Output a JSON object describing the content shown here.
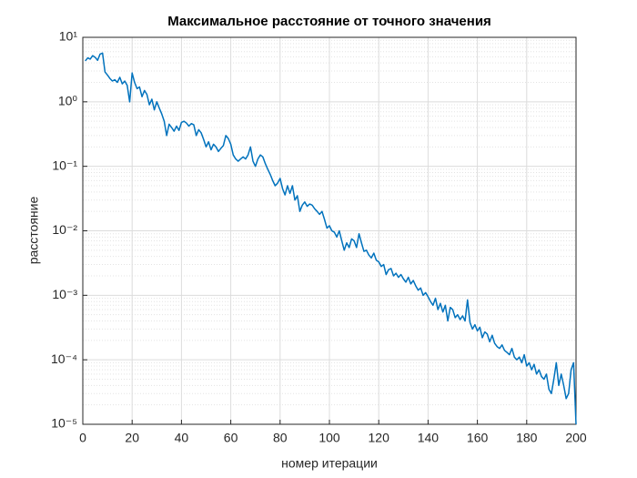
{
  "chart_data": {
    "type": "line",
    "title": "Максимальное расстояние от точного значения",
    "x_label": "номер итерации",
    "y_label": "расстояние",
    "x": [
      1,
      2,
      3,
      4,
      5,
      6,
      7,
      8,
      9,
      10,
      11,
      12,
      13,
      14,
      15,
      16,
      17,
      18,
      19,
      20,
      21,
      22,
      23,
      24,
      25,
      26,
      27,
      28,
      29,
      30,
      31,
      32,
      33,
      34,
      35,
      36,
      37,
      38,
      39,
      40,
      41,
      42,
      43,
      44,
      45,
      46,
      47,
      48,
      49,
      50,
      51,
      52,
      53,
      54,
      55,
      56,
      57,
      58,
      59,
      60,
      61,
      62,
      63,
      64,
      65,
      66,
      67,
      68,
      69,
      70,
      71,
      72,
      73,
      74,
      75,
      76,
      77,
      78,
      79,
      80,
      81,
      82,
      83,
      84,
      85,
      86,
      87,
      88,
      89,
      90,
      91,
      92,
      93,
      94,
      95,
      96,
      97,
      98,
      99,
      100,
      101,
      102,
      103,
      104,
      105,
      106,
      107,
      108,
      109,
      110,
      111,
      112,
      113,
      114,
      115,
      116,
      117,
      118,
      119,
      120,
      121,
      122,
      123,
      124,
      125,
      126,
      127,
      128,
      129,
      130,
      131,
      132,
      133,
      134,
      135,
      136,
      137,
      138,
      139,
      140,
      141,
      142,
      143,
      144,
      145,
      146,
      147,
      148,
      149,
      150,
      151,
      152,
      153,
      154,
      155,
      156,
      157,
      158,
      159,
      160,
      161,
      162,
      163,
      164,
      165,
      166,
      167,
      168,
      169,
      170,
      171,
      172,
      173,
      174,
      175,
      176,
      177,
      178,
      179,
      180,
      181,
      182,
      183,
      184,
      185,
      186,
      187,
      188,
      189,
      190,
      191,
      192,
      193,
      194,
      195,
      196,
      197,
      198,
      199,
      200
    ],
    "series": [
      {
        "name": "distance",
        "color": "#0072bd",
        "values": [
          4.3,
          4.8,
          4.6,
          5.2,
          4.9,
          4.4,
          5.5,
          5.7,
          2.9,
          2.6,
          2.3,
          2.1,
          2.2,
          2.0,
          2.4,
          1.9,
          2.1,
          1.8,
          1.0,
          2.8,
          2.0,
          1.6,
          1.7,
          1.2,
          1.5,
          1.3,
          0.9,
          1.1,
          0.75,
          1.0,
          0.8,
          0.65,
          0.5,
          0.3,
          0.45,
          0.4,
          0.35,
          0.42,
          0.36,
          0.48,
          0.5,
          0.47,
          0.42,
          0.46,
          0.44,
          0.3,
          0.37,
          0.33,
          0.26,
          0.2,
          0.24,
          0.18,
          0.22,
          0.2,
          0.17,
          0.19,
          0.21,
          0.3,
          0.27,
          0.22,
          0.15,
          0.13,
          0.12,
          0.13,
          0.14,
          0.13,
          0.15,
          0.2,
          0.12,
          0.1,
          0.13,
          0.15,
          0.14,
          0.11,
          0.09,
          0.075,
          0.06,
          0.05,
          0.055,
          0.065,
          0.045,
          0.036,
          0.05,
          0.038,
          0.05,
          0.03,
          0.035,
          0.02,
          0.025,
          0.028,
          0.024,
          0.026,
          0.025,
          0.022,
          0.02,
          0.018,
          0.02,
          0.015,
          0.011,
          0.012,
          0.01,
          0.0095,
          0.008,
          0.01,
          0.007,
          0.005,
          0.0065,
          0.0055,
          0.0075,
          0.007,
          0.0055,
          0.009,
          0.0065,
          0.0048,
          0.005,
          0.0042,
          0.0038,
          0.0045,
          0.0035,
          0.0033,
          0.0028,
          0.003,
          0.0021,
          0.0025,
          0.0026,
          0.002,
          0.0022,
          0.0019,
          0.0021,
          0.0018,
          0.0016,
          0.0019,
          0.0015,
          0.0017,
          0.0014,
          0.0012,
          0.0013,
          0.001,
          0.0011,
          0.00095,
          0.0008,
          0.0007,
          0.0009,
          0.0006,
          0.00075,
          0.00055,
          0.0007,
          0.0004,
          0.00065,
          0.0006,
          0.00045,
          0.0005,
          0.00042,
          0.00048,
          0.0004,
          0.00085,
          0.00038,
          0.0003,
          0.00035,
          0.00028,
          0.00032,
          0.00022,
          0.00027,
          0.00025,
          0.00019,
          0.00024,
          0.00018,
          0.00016,
          0.00015,
          0.00017,
          0.00014,
          0.00013,
          0.00012,
          0.00015,
          0.00011,
          0.0001,
          0.00011,
          9e-05,
          0.00012,
          8e-05,
          9e-05,
          7e-05,
          8.5e-05,
          6e-05,
          7e-05,
          5.5e-05,
          5e-05,
          6e-05,
          3.5e-05,
          3e-05,
          5e-05,
          9e-05,
          4e-05,
          6e-05,
          4e-05,
          2.5e-05,
          3e-05,
          7e-05,
          9e-05,
          1e-05
        ]
      }
    ],
    "xlim": [
      0,
      200
    ],
    "xticks": [
      0,
      20,
      40,
      60,
      80,
      100,
      120,
      140,
      160,
      180,
      200
    ],
    "ylim": [
      1e-05,
      10
    ],
    "y_scale": "log",
    "yticks": [
      {
        "value": 1e-05,
        "label": "10⁻⁵"
      },
      {
        "value": 0.0001,
        "label": "10⁻⁴"
      },
      {
        "value": 0.001,
        "label": "10⁻³"
      },
      {
        "value": 0.01,
        "label": "10⁻²"
      },
      {
        "value": 0.1,
        "label": "10⁻¹"
      },
      {
        "value": 1,
        "label": "10⁰"
      },
      {
        "value": 10,
        "label": "10¹"
      }
    ],
    "grid": true,
    "minor_grid": true
  }
}
